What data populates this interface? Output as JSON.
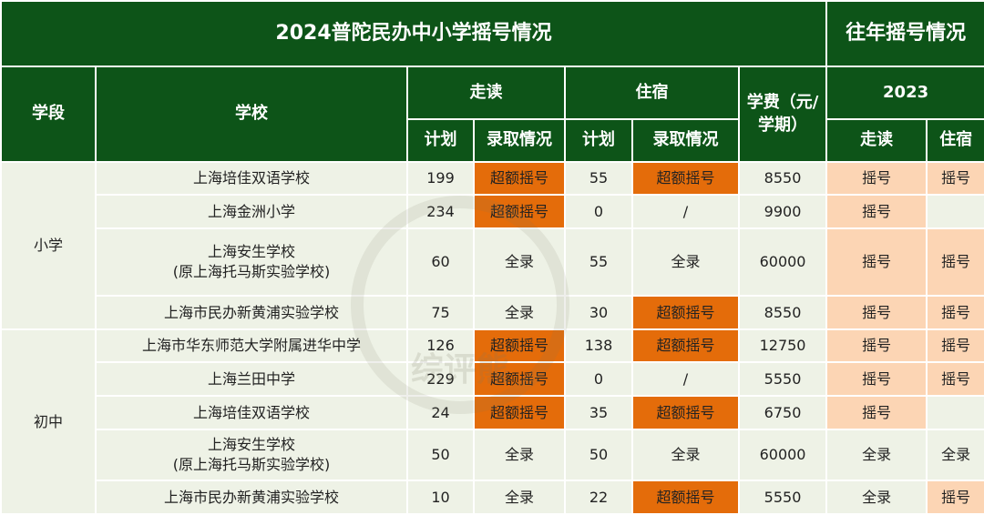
{
  "title": "2024普陀民办中小学摇号情况",
  "title_past": "往年摇号情况",
  "headers": {
    "stage": "学段",
    "school": "学校",
    "day": "走读",
    "board": "住宿",
    "plan": "计划",
    "admission": "录取情况",
    "fee": "学费（元/学期）",
    "year": "2023",
    "past_day": "走读",
    "past_board": "住宿"
  },
  "stages": {
    "primary": "小学",
    "middle": "初中"
  },
  "rows": [
    {
      "school": "上海培佳双语学校",
      "day_plan": "199",
      "day_status": "超额摇号",
      "board_plan": "55",
      "board_status": "超额摇号",
      "fee": "8550",
      "past_day": "摇号",
      "past_board": "摇号"
    },
    {
      "school": "上海金洲小学",
      "day_plan": "234",
      "day_status": "超额摇号",
      "board_plan": "0",
      "board_status": "/",
      "fee": "9900",
      "past_day": "摇号",
      "past_board": ""
    },
    {
      "school": "上海安生学校\n(原上海托马斯实验学校)",
      "day_plan": "60",
      "day_status": "全录",
      "board_plan": "55",
      "board_status": "全录",
      "fee": "60000",
      "past_day": "摇号",
      "past_board": "摇号"
    },
    {
      "school": "上海市民办新黄浦实验学校",
      "day_plan": "75",
      "day_status": "全录",
      "board_plan": "30",
      "board_status": "超额摇号",
      "fee": "8550",
      "past_day": "摇号",
      "past_board": "摇号"
    },
    {
      "school": "上海市华东师范大学附属进华中学",
      "day_plan": "126",
      "day_status": "超额摇号",
      "board_plan": "138",
      "board_status": "超额摇号",
      "fee": "12750",
      "past_day": "摇号",
      "past_board": "摇号"
    },
    {
      "school": "上海兰田中学",
      "day_plan": "229",
      "day_status": "超额摇号",
      "board_plan": "0",
      "board_status": "/",
      "fee": "5550",
      "past_day": "摇号",
      "past_board": "摇号"
    },
    {
      "school": "上海培佳双语学校",
      "day_plan": "24",
      "day_status": "超额摇号",
      "board_plan": "35",
      "board_status": "超额摇号",
      "fee": "6750",
      "past_day": "摇号",
      "past_board": ""
    },
    {
      "school": "上海安生学校\n(原上海托马斯实验学校)",
      "day_plan": "50",
      "day_status": "全录",
      "board_plan": "50",
      "board_status": "全录",
      "fee": "60000",
      "past_day": "全录",
      "past_board": "全录"
    },
    {
      "school": "上海市民办新黄浦实验学校",
      "day_plan": "10",
      "day_status": "全录",
      "board_plan": "22",
      "board_status": "超额摇号",
      "fee": "5550",
      "past_day": "全录",
      "past_board": "摇号"
    }
  ],
  "watermark": "综评熊",
  "colors": {
    "header": "#0d5418",
    "row": "#eef2e6",
    "oversubscribed": "#e46c0a",
    "past_lottery": "#fcd5b4"
  }
}
